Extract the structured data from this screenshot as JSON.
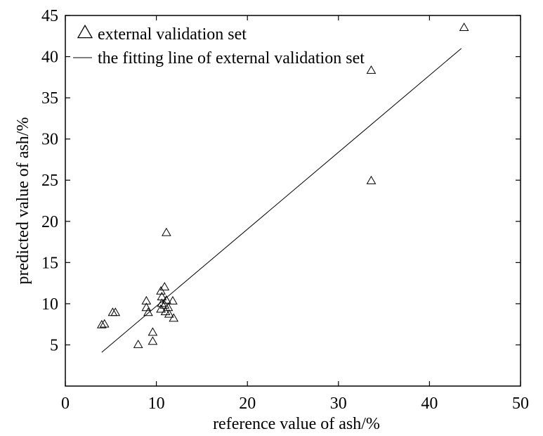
{
  "chart_data": {
    "type": "scatter",
    "xlabel": "reference value of ash/%",
    "ylabel": "predicted value of ash/%",
    "xlim": [
      0,
      50
    ],
    "ylim": [
      0,
      45
    ],
    "xticks": [
      0,
      10,
      20,
      30,
      40,
      50
    ],
    "yticks": [
      5,
      10,
      15,
      20,
      25,
      30,
      35,
      40,
      45
    ],
    "grid": false,
    "legend_position": "top-left",
    "series": [
      {
        "name": "external validation set",
        "marker": "triangle",
        "color": "#000000",
        "points": [
          [
            4.0,
            7.4
          ],
          [
            4.3,
            7.5
          ],
          [
            5.2,
            8.9
          ],
          [
            5.5,
            8.9
          ],
          [
            8.0,
            5.0
          ],
          [
            8.9,
            10.3
          ],
          [
            8.9,
            9.5
          ],
          [
            9.1,
            8.9
          ],
          [
            9.6,
            6.5
          ],
          [
            9.6,
            5.4
          ],
          [
            10.5,
            11.5
          ],
          [
            10.6,
            10.8
          ],
          [
            10.6,
            10.0
          ],
          [
            10.5,
            9.3
          ],
          [
            10.9,
            12.0
          ],
          [
            10.9,
            9.8
          ],
          [
            11.0,
            9.0
          ],
          [
            11.1,
            10.4
          ],
          [
            11.3,
            9.5
          ],
          [
            11.4,
            8.7
          ],
          [
            11.8,
            10.3
          ],
          [
            11.9,
            8.2
          ],
          [
            11.1,
            18.6
          ],
          [
            33.6,
            38.3
          ],
          [
            33.6,
            24.9
          ],
          [
            43.8,
            43.5
          ]
        ]
      },
      {
        "name": "the fitting line of external validation set",
        "marker": "line",
        "color": "#000000",
        "points": [
          [
            4.0,
            4.1
          ],
          [
            43.5,
            41.0
          ]
        ]
      }
    ]
  }
}
